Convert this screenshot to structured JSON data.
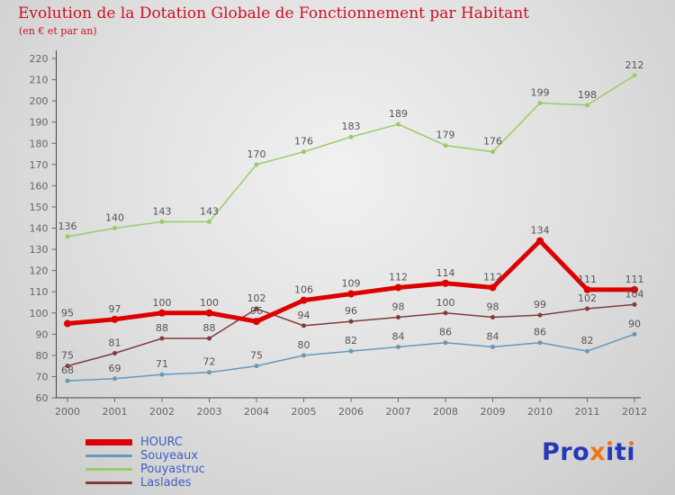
{
  "title": "Evolution de la Dotation Globale de Fonctionnement par Habitant",
  "subtitle": "(en € et par an)",
  "colors": {
    "title": "#cc1122",
    "axis": "#444444",
    "tick": "#b05050",
    "tick_label": "#666666",
    "value_label": "#555555",
    "legend_text": "#3d5fc4",
    "hourc": "#dd0000",
    "souyeaux": "#6699bb",
    "pouyastruc": "#99cc66",
    "laslades": "#823c3c"
  },
  "logo": {
    "text": "Proxiti",
    "dot_color": "#ee7711",
    "segments": [
      {
        "text": "Pro",
        "color": "#2438b8"
      },
      {
        "text": "x",
        "color": "#ee7711"
      },
      {
        "text": "ı",
        "color": "#2438b8",
        "dot": true
      },
      {
        "text": "t",
        "color": "#2438b8"
      },
      {
        "text": "ı",
        "color": "#2438b8",
        "dot": true
      }
    ]
  },
  "chart_data": {
    "type": "line",
    "title": "Evolution de la Dotation Globale de Fonctionnement par Habitant",
    "subtitle": "(en € et par an)",
    "x": [
      2000,
      2001,
      2002,
      2003,
      2004,
      2005,
      2006,
      2007,
      2008,
      2009,
      2010,
      2011,
      2012
    ],
    "ylim": [
      60,
      220
    ],
    "ytick_step": 10,
    "grid": false,
    "legend_position": "bottom-left",
    "series": [
      {
        "name": "HOURC",
        "color": "#dd0000",
        "width": 5,
        "values": [
          95,
          97,
          100,
          100,
          96,
          106,
          109,
          112,
          114,
          112,
          134,
          111,
          111
        ]
      },
      {
        "name": "Souyeaux",
        "color": "#6699bb",
        "width": 1.5,
        "values": [
          68,
          69,
          71,
          72,
          75,
          80,
          82,
          84,
          86,
          84,
          86,
          82,
          90
        ]
      },
      {
        "name": "Pouyastruc",
        "color": "#99cc66",
        "width": 1.5,
        "values": [
          136,
          140,
          143,
          143,
          170,
          176,
          183,
          189,
          179,
          176,
          199,
          198,
          212
        ]
      },
      {
        "name": "Laslades",
        "color": "#823c3c",
        "width": 1.5,
        "values": [
          75,
          81,
          88,
          88,
          102,
          94,
          96,
          98,
          100,
          98,
          99,
          102,
          104
        ]
      }
    ]
  }
}
